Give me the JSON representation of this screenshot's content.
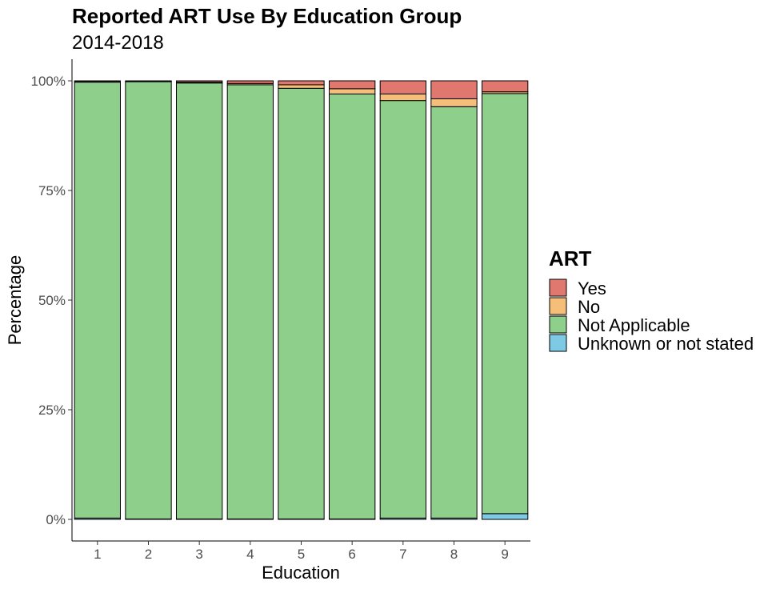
{
  "chart_data": {
    "type": "bar",
    "stacked": true,
    "title": "Reported ART Use By Education Group",
    "subtitle": "2014-2018",
    "xlabel": "Education",
    "ylabel": "Percentage",
    "categories": [
      "1",
      "2",
      "3",
      "4",
      "5",
      "6",
      "7",
      "8",
      "9"
    ],
    "y_ticks": [
      {
        "value": 0,
        "label": "0%"
      },
      {
        "value": 25,
        "label": "25%"
      },
      {
        "value": 50,
        "label": "50%"
      },
      {
        "value": 75,
        "label": "75%"
      },
      {
        "value": 100,
        "label": "100%"
      }
    ],
    "ylim": [
      0,
      100
    ],
    "grid": false,
    "legend": {
      "title": "ART",
      "position": "right"
    },
    "series": [
      {
        "name": "Unknown or not stated",
        "color": "#7ecae4",
        "values": [
          0.3,
          0.1,
          0.1,
          0.1,
          0.1,
          0.1,
          0.3,
          0.3,
          1.3
        ]
      },
      {
        "name": "Not Applicable",
        "color": "#8ecf8c",
        "values": [
          99.4,
          99.7,
          99.4,
          99.0,
          98.2,
          96.9,
          95.2,
          93.8,
          95.8
        ]
      },
      {
        "name": "No",
        "color": "#f6bf79",
        "values": [
          0.1,
          0.1,
          0.2,
          0.3,
          0.8,
          1.2,
          1.5,
          1.8,
          0.4
        ]
      },
      {
        "name": "Yes",
        "color": "#e0786f",
        "values": [
          0.2,
          0.1,
          0.3,
          0.6,
          0.9,
          1.8,
          3.0,
          4.1,
          2.5
        ]
      }
    ],
    "legend_order": [
      "Yes",
      "No",
      "Not Applicable",
      "Unknown or not stated"
    ]
  }
}
